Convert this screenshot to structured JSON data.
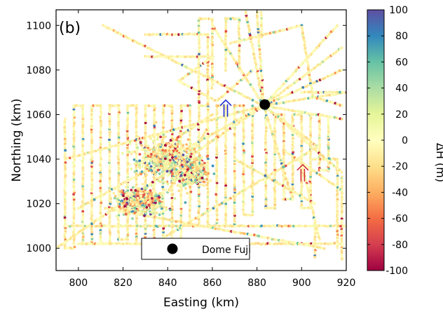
{
  "chart_data": {
    "type": "scatter",
    "panel_label": "(b)",
    "xlabel": "Easting (km)",
    "ylabel": "Northing (km)",
    "xlim": [
      790,
      920
    ],
    "ylim": [
      990,
      1107
    ],
    "x_ticks": [
      800,
      820,
      840,
      860,
      880,
      900,
      920
    ],
    "y_ticks": [
      1000,
      1020,
      1040,
      1060,
      1080,
      1100
    ],
    "grid": false,
    "legend": {
      "location": "bottom-center",
      "entries": [
        {
          "label": "Dome Fuji",
          "marker": "filled-circle",
          "color": "#000000"
        }
      ]
    },
    "markers": [
      {
        "name": "Dome Fuji",
        "x": 883.5,
        "y": 1064.5,
        "color": "#000000"
      }
    ],
    "annotations": [
      {
        "type": "arrow",
        "color": "#1f2ad6",
        "x": 866,
        "y": 1064,
        "direction": "up"
      },
      {
        "type": "arrow",
        "color": "#d42a3a",
        "x": 900.5,
        "y": 1035,
        "direction": "up"
      }
    ],
    "colorbar": {
      "label": "ΔH (m)",
      "min": -100,
      "max": 100,
      "ticks": [
        100,
        80,
        60,
        40,
        20,
        0,
        -20,
        -40,
        -60,
        -80,
        -100
      ],
      "colors": [
        "#9e0142",
        "#d53e4f",
        "#f46d43",
        "#fdae61",
        "#fee08b",
        "#ffffbf",
        "#e6f598",
        "#abdda4",
        "#66c2a5",
        "#3288bd",
        "#5e4fa2"
      ]
    },
    "series": [
      {
        "tracks": [
          [
            [
              794,
              1058
            ],
            [
              794,
              1000
            ]
          ],
          [
            [
              794,
              1000
            ],
            [
              798,
              1000
            ]
          ],
          [
            [
              798,
              1000
            ],
            [
              798,
              1064
            ]
          ],
          [
            [
              798,
              1064
            ],
            [
              802,
              1064
            ]
          ],
          [
            [
              802,
              1064
            ],
            [
              802,
              1002
            ]
          ],
          [
            [
              802,
              1002
            ],
            [
              806,
              1002
            ]
          ],
          [
            [
              806,
              1002
            ],
            [
              806,
              1064
            ]
          ],
          [
            [
              806,
              1064
            ],
            [
              810,
              1064
            ]
          ],
          [
            [
              810,
              1064
            ],
            [
              810,
              1002
            ]
          ],
          [
            [
              810,
              1002
            ],
            [
              814,
              1002
            ]
          ],
          [
            [
              814,
              1002
            ],
            [
              814,
              1064
            ]
          ],
          [
            [
              814,
              1064
            ],
            [
              818,
              1064
            ]
          ],
          [
            [
              818,
              1064
            ],
            [
              818,
              1004
            ]
          ],
          [
            [
              818,
              1004
            ],
            [
              822,
              1004
            ]
          ],
          [
            [
              822,
              1004
            ],
            [
              822,
              1064
            ]
          ],
          [
            [
              822,
              1064
            ],
            [
              826,
              1064
            ]
          ],
          [
            [
              826,
              1064
            ],
            [
              826,
              1002
            ]
          ],
          [
            [
              826,
              1002
            ],
            [
              830,
              1002
            ]
          ],
          [
            [
              830,
              1002
            ],
            [
              830,
              1064
            ]
          ],
          [
            [
              830,
              1064
            ],
            [
              834,
              1064
            ]
          ],
          [
            [
              834,
              1064
            ],
            [
              834,
              1002
            ]
          ],
          [
            [
              834,
              1002
            ],
            [
              838,
              1002
            ]
          ],
          [
            [
              838,
              1002
            ],
            [
              838,
              1064
            ]
          ],
          [
            [
              838,
              1064
            ],
            [
              842,
              1064
            ]
          ],
          [
            [
              842,
              1064
            ],
            [
              842,
              1002
            ]
          ],
          [
            [
              842,
              1002
            ],
            [
              846,
              1002
            ]
          ],
          [
            [
              846,
              1002
            ],
            [
              846,
              1064
            ]
          ],
          [
            [
              846,
              1064
            ],
            [
              850,
              1064
            ]
          ],
          [
            [
              850,
              1064
            ],
            [
              850,
              1010
            ]
          ],
          [
            [
              850,
              1010
            ],
            [
              854,
              1010
            ]
          ],
          [
            [
              854,
              1010
            ],
            [
              854,
              1064
            ]
          ],
          [
            [
              854,
              1064
            ],
            [
              858,
              1064
            ]
          ],
          [
            [
              858,
              1064
            ],
            [
              858,
              1010
            ]
          ],
          [
            [
              858,
              1010
            ],
            [
              862,
              1010
            ]
          ],
          [
            [
              862,
              1010
            ],
            [
              862,
              1064
            ]
          ],
          [
            [
              862,
              1064
            ],
            [
              866,
              1064
            ]
          ],
          [
            [
              866,
              1064
            ],
            [
              866,
              1010
            ]
          ],
          [
            [
              866,
              1010
            ],
            [
              870,
              1010
            ]
          ],
          [
            [
              870,
              1010
            ],
            [
              870,
              1064
            ]
          ],
          [
            [
              870,
              1064
            ],
            [
              874,
              1064
            ]
          ],
          [
            [
              874,
              1064
            ],
            [
              874,
              1015
            ]
          ],
          [
            [
              874,
              1015
            ],
            [
              878,
              1015
            ]
          ],
          [
            [
              878,
              1015
            ],
            [
              878,
              1064
            ]
          ],
          [
            [
              884,
              1060
            ],
            [
              884,
              1018
            ]
          ],
          [
            [
              884,
              1018
            ],
            [
              888,
              1018
            ]
          ],
          [
            [
              888,
              1018
            ],
            [
              888,
              1060
            ]
          ],
          [
            [
              888,
              1060
            ],
            [
              892,
              1060
            ]
          ],
          [
            [
              892,
              1060
            ],
            [
              892,
              1022
            ]
          ],
          [
            [
              892,
              1022
            ],
            [
              896,
              1022
            ]
          ],
          [
            [
              896,
              1022
            ],
            [
              896,
              1060
            ]
          ],
          [
            [
              896,
              1060
            ],
            [
              900,
              1060
            ]
          ],
          [
            [
              900,
              1060
            ],
            [
              900,
              1018
            ]
          ],
          [
            [
              900,
              1018
            ],
            [
              904,
              1018
            ]
          ],
          [
            [
              904,
              1018
            ],
            [
              904,
              1060
            ]
          ],
          [
            [
              904,
              1060
            ],
            [
              908,
              1060
            ]
          ],
          [
            [
              908,
              1060
            ],
            [
              908,
              1035
            ]
          ],
          [
            [
              908,
              1035
            ],
            [
              912,
              1035
            ]
          ],
          [
            [
              912,
              1035
            ],
            [
              912,
              1058
            ]
          ],
          [
            [
              904,
              1040
            ],
            [
              916,
              1040
            ]
          ],
          [
            [
              916,
              1040
            ],
            [
              916,
              1000
            ]
          ],
          [
            [
              906,
              1012
            ],
            [
              906,
              996
            ]
          ],
          [
            [
              918,
              1032
            ],
            [
              918,
              995
            ]
          ],
          [
            [
              800,
              1002
            ],
            [
              918,
              1002
            ]
          ],
          [
            [
              794,
              1010
            ],
            [
              920,
              1010
            ]
          ],
          [
            [
              794,
              1040
            ],
            [
              883,
              1064
            ]
          ],
          [
            [
              883,
              1064
            ],
            [
              918,
              1080
            ]
          ],
          [
            [
              790,
              1000
            ],
            [
              883,
              1064
            ]
          ],
          [
            [
              883,
              1064
            ],
            [
              918,
              1090
            ]
          ],
          [
            [
              800,
              1018
            ],
            [
              883,
              1064
            ]
          ],
          [
            [
              883,
              1064
            ],
            [
              916,
              1100
            ]
          ],
          [
            [
              883,
              1064
            ],
            [
              875,
              1106
            ]
          ],
          [
            [
              883,
              1064
            ],
            [
              880,
              1106
            ]
          ],
          [
            [
              883,
              1064
            ],
            [
              860,
              1100
            ]
          ],
          [
            [
              883,
              1064
            ],
            [
              918,
              1034
            ]
          ],
          [
            [
              883,
              1064
            ],
            [
              918,
              1058
            ]
          ],
          [
            [
              883,
              1064
            ],
            [
              920,
              1070
            ]
          ],
          [
            [
              883,
              1064
            ],
            [
              896,
              1022
            ]
          ],
          [
            [
              883,
              1064
            ],
            [
              908,
              1045
            ]
          ],
          [
            [
              811,
              1100
            ],
            [
              883,
              1064
            ]
          ],
          [
            [
              830,
              1096
            ],
            [
              858,
              1096
            ]
          ],
          [
            [
              858,
              1096
            ],
            [
              858,
              1062
            ]
          ],
          [
            [
              812,
              1018
            ],
            [
              910,
              1000
            ]
          ],
          [
            [
              830,
              1000
            ],
            [
              908,
              1046
            ]
          ],
          [
            [
              892,
              1044
            ],
            [
              918,
              1026
            ]
          ],
          [
            [
              900,
              1038
            ],
            [
              908,
              1004
            ]
          ],
          [
            [
              870,
              1040
            ],
            [
              906,
              1020
            ]
          ],
          [
            [
              830,
              1040
            ],
            [
              860,
              1060
            ]
          ],
          [
            [
              840,
              1025
            ],
            [
              858,
              1054
            ]
          ],
          [
            [
              830,
              1086
            ],
            [
              860,
              1086
            ]
          ],
          [
            [
              845,
              1075
            ],
            [
              860,
              1086
            ]
          ],
          [
            [
              845,
              1075
            ],
            [
              862,
              1066
            ]
          ],
          [
            [
              862,
              1066
            ],
            [
              878,
              1080
            ]
          ],
          [
            [
              868,
              1092
            ],
            [
              900,
              1100
            ]
          ],
          [
            [
              900,
              1100
            ],
            [
              905,
              1068
            ]
          ],
          [
            [
              905,
              1068
            ],
            [
              918,
              1064
            ]
          ],
          [
            [
              854,
              1064
            ],
            [
              854,
              1103
            ]
          ],
          [
            [
              854,
              1103
            ],
            [
              860,
              1103
            ]
          ],
          [
            [
              860,
              1103
            ],
            [
              860,
              1072
            ]
          ],
          [
            [
              866,
              1080
            ],
            [
              866,
              1103
            ]
          ],
          [
            [
              866,
              1103
            ],
            [
              872,
              1103
            ]
          ],
          [
            [
              872,
              1103
            ],
            [
              872,
              1080
            ]
          ],
          [
            [
              882,
              1106
            ],
            [
              882,
              1095
            ]
          ],
          [
            [
              900,
              1070
            ],
            [
              918,
              1070
            ]
          ]
        ],
        "clusters": [
          {
            "center": [
              838,
              1040
            ],
            "spread": [
              12,
              8
            ]
          },
          {
            "center": [
              828,
              1021
            ],
            "spread": [
              10,
              5
            ]
          },
          {
            "center": [
              850,
              1034
            ],
            "spread": [
              7,
              6
            ]
          }
        ]
      }
    ]
  }
}
